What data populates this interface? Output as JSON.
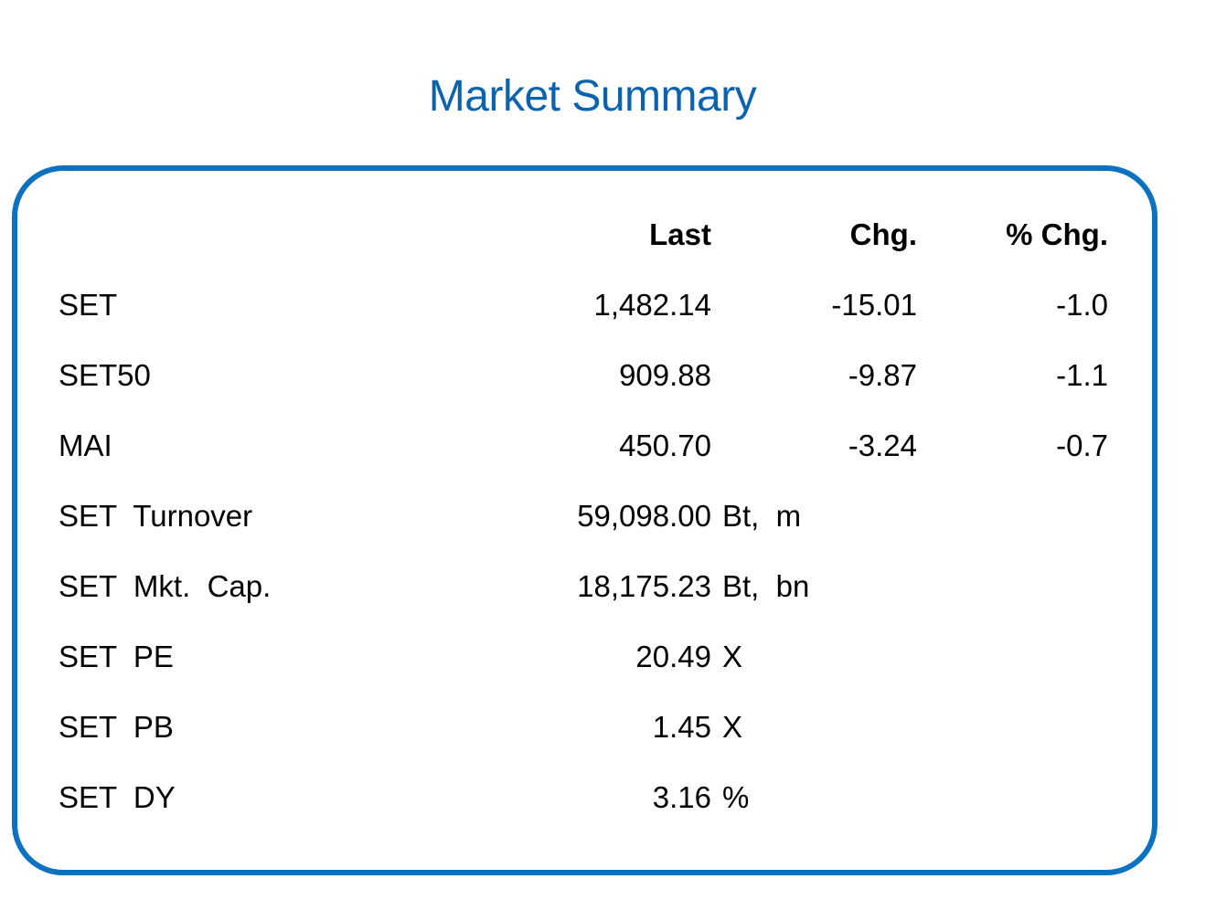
{
  "title": "Market Summary",
  "colors": {
    "title": "#0b63ad",
    "border": "#0b72c2"
  },
  "headers": {
    "last": "Last",
    "chg": "Chg.",
    "pct_chg": "% Chg."
  },
  "rows": [
    {
      "label": "SET",
      "last": "1,482.14",
      "chg": "-15.01",
      "pct": "-1.0",
      "unit": ""
    },
    {
      "label": "SET50",
      "last": "909.88",
      "chg": "-9.87",
      "pct": "-1.1",
      "unit": ""
    },
    {
      "label": "MAI",
      "last": "450.70",
      "chg": "-3.24",
      "pct": "-0.7",
      "unit": ""
    },
    {
      "label": "SET  Turnover",
      "last": "59,098.00",
      "chg": "",
      "pct": "",
      "unit": "Bt,  m"
    },
    {
      "label": "SET  Mkt.  Cap.",
      "last": "18,175.23",
      "chg": "",
      "pct": "",
      "unit": "Bt,  bn"
    },
    {
      "label": "SET  PE",
      "last": "20.49",
      "chg": "",
      "pct": "",
      "unit": "X"
    },
    {
      "label": "SET  PB",
      "last": "1.45",
      "chg": "",
      "pct": "",
      "unit": "X"
    },
    {
      "label": "SET  DY",
      "last": "3.16",
      "chg": "",
      "pct": "",
      "unit": "%"
    }
  ]
}
